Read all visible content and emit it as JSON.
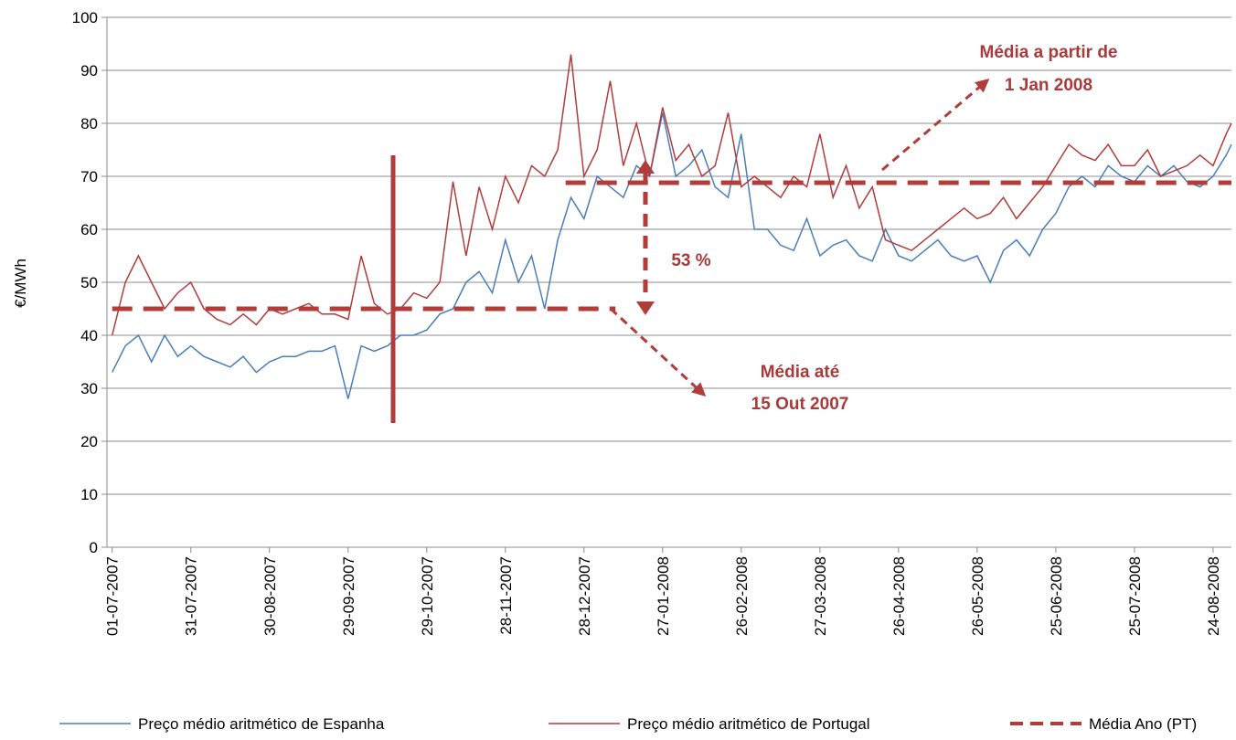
{
  "chart_data": {
    "type": "line",
    "y_label": "€/MWh",
    "xlim": [
      "29-06-2007",
      "31-08-2008"
    ],
    "ylim": [
      0,
      100
    ],
    "yticks": [
      0,
      10,
      20,
      30,
      40,
      50,
      60,
      70,
      80,
      90,
      100
    ],
    "xticks": [
      "01-07-2007",
      "31-07-2007",
      "30-08-2007",
      "29-09-2007",
      "29-10-2007",
      "28-11-2007",
      "28-12-2007",
      "27-01-2008",
      "26-02-2008",
      "27-03-2008",
      "26-04-2008",
      "26-05-2008",
      "25-06-2008",
      "25-07-2008",
      "24-08-2008"
    ],
    "grid": true,
    "x": [
      "01-07-2007",
      "06-07-2007",
      "11-07-2007",
      "16-07-2007",
      "21-07-2007",
      "26-07-2007",
      "31-07-2007",
      "05-08-2007",
      "10-08-2007",
      "15-08-2007",
      "20-08-2007",
      "25-08-2007",
      "30-08-2007",
      "04-09-2007",
      "09-09-2007",
      "14-09-2007",
      "19-09-2007",
      "24-09-2007",
      "29-09-2007",
      "04-10-2007",
      "09-10-2007",
      "14-10-2007",
      "19-10-2007",
      "24-10-2007",
      "29-10-2007",
      "03-11-2007",
      "08-11-2007",
      "13-11-2007",
      "18-11-2007",
      "23-11-2007",
      "28-11-2007",
      "03-12-2007",
      "08-12-2007",
      "13-12-2007",
      "18-12-2007",
      "23-12-2007",
      "28-12-2007",
      "02-01-2008",
      "07-01-2008",
      "12-01-2008",
      "17-01-2008",
      "22-01-2008",
      "27-01-2008",
      "01-02-2008",
      "06-02-2008",
      "11-02-2008",
      "16-02-2008",
      "21-02-2008",
      "26-02-2008",
      "02-03-2008",
      "07-03-2008",
      "12-03-2008",
      "17-03-2008",
      "22-03-2008",
      "27-03-2008",
      "01-04-2008",
      "06-04-2008",
      "11-04-2008",
      "16-04-2008",
      "21-04-2008",
      "26-04-2008",
      "01-05-2008",
      "06-05-2008",
      "11-05-2008",
      "16-05-2008",
      "21-05-2008",
      "26-05-2008",
      "31-05-2008",
      "05-06-2008",
      "10-06-2008",
      "15-06-2008",
      "20-06-2008",
      "25-06-2008",
      "30-06-2008",
      "05-07-2008",
      "10-07-2008",
      "15-07-2008",
      "20-07-2008",
      "25-07-2008",
      "30-07-2008",
      "04-08-2008",
      "09-08-2008",
      "14-08-2008",
      "19-08-2008",
      "24-08-2008",
      "29-08-2008",
      "31-08-2008"
    ],
    "series": [
      {
        "name": "Preço médio aritmético de Espanha",
        "color": "#4a7ebb",
        "values": [
          33,
          38,
          40,
          35,
          40,
          36,
          38,
          36,
          35,
          34,
          36,
          33,
          35,
          36,
          36,
          37,
          37,
          38,
          28,
          38,
          37,
          38,
          40,
          40,
          41,
          44,
          45,
          50,
          52,
          48,
          58,
          50,
          55,
          45,
          58,
          66,
          62,
          70,
          68,
          66,
          72,
          70,
          82,
          70,
          72,
          75,
          68,
          66,
          78,
          60,
          60,
          57,
          56,
          62,
          55,
          57,
          58,
          55,
          54,
          60,
          55,
          54,
          56,
          58,
          55,
          54,
          55,
          50,
          56,
          58,
          55,
          60,
          63,
          68,
          70,
          68,
          72,
          70,
          69,
          72,
          70,
          72,
          69,
          68,
          70,
          74,
          76
        ]
      },
      {
        "name": "Preço médio aritmético de Portugal",
        "color": "#b23c3a",
        "values": [
          40,
          50,
          55,
          50,
          45,
          48,
          50,
          45,
          43,
          42,
          44,
          42,
          45,
          44,
          45,
          46,
          44,
          44,
          43,
          55,
          46,
          44,
          45,
          48,
          47,
          50,
          69,
          55,
          68,
          60,
          70,
          65,
          72,
          70,
          75,
          93,
          70,
          75,
          88,
          72,
          80,
          70,
          83,
          73,
          76,
          70,
          72,
          82,
          68,
          70,
          68,
          66,
          70,
          68,
          78,
          66,
          72,
          64,
          68,
          58,
          57,
          56,
          58,
          60,
          62,
          64,
          62,
          63,
          66,
          62,
          65,
          68,
          72,
          76,
          74,
          73,
          76,
          72,
          72,
          75,
          70,
          71,
          72,
          74,
          72,
          78,
          80
        ]
      },
      {
        "name": "Média Ano (PT)",
        "color": "#b23c3a",
        "dashed": true,
        "x": [
          "01-07-2007",
          "09-01-2008",
          null,
          "21-12-2007",
          "31-08-2008"
        ],
        "values": [
          45,
          45,
          null,
          68.8,
          68.8
        ]
      }
    ],
    "annotations": [
      "Média a partir de",
      "1 Jan 2008",
      "53 %",
      "Média até",
      "15 Out 2007"
    ]
  }
}
